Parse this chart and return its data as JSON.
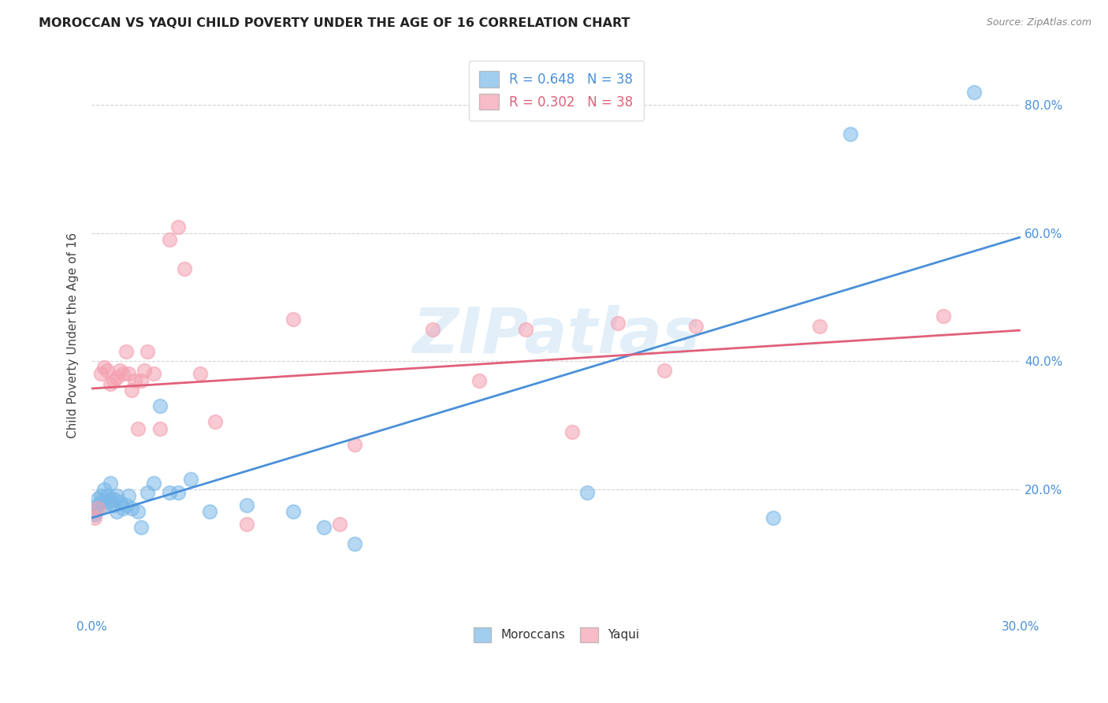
{
  "title": "MOROCCAN VS YAQUI CHILD POVERTY UNDER THE AGE OF 16 CORRELATION CHART",
  "source": "Source: ZipAtlas.com",
  "ylabel": "Child Poverty Under the Age of 16",
  "watermark": "ZIPatlas",
  "xlim": [
    0.0,
    0.3
  ],
  "ylim": [
    0.0,
    0.88
  ],
  "xticks": [
    0.0,
    0.05,
    0.1,
    0.15,
    0.2,
    0.25,
    0.3
  ],
  "yticks": [
    0.0,
    0.2,
    0.4,
    0.6,
    0.8
  ],
  "right_ytick_labels": [
    "",
    "20.0%",
    "40.0%",
    "60.0%",
    "80.0%"
  ],
  "xtick_labels": [
    "0.0%",
    "",
    "",
    "",
    "",
    "",
    "30.0%"
  ],
  "moroccan_R": 0.648,
  "moroccan_N": 38,
  "yaqui_R": 0.302,
  "yaqui_N": 38,
  "moroccan_color": "#7ab8e8",
  "yaqui_color": "#f4a0b0",
  "moroccan_line_color": "#4a90d9",
  "yaqui_line_color": "#e0607a",
  "background_color": "#ffffff",
  "moroccan_x": [
    0.001,
    0.001,
    0.002,
    0.002,
    0.003,
    0.003,
    0.004,
    0.004,
    0.005,
    0.005,
    0.006,
    0.006,
    0.007,
    0.007,
    0.008,
    0.008,
    0.009,
    0.01,
    0.011,
    0.012,
    0.013,
    0.015,
    0.016,
    0.018,
    0.02,
    0.022,
    0.025,
    0.028,
    0.032,
    0.038,
    0.05,
    0.065,
    0.075,
    0.085,
    0.16,
    0.22,
    0.245,
    0.285
  ],
  "moroccan_y": [
    0.165,
    0.16,
    0.185,
    0.175,
    0.19,
    0.18,
    0.2,
    0.175,
    0.19,
    0.18,
    0.21,
    0.185,
    0.185,
    0.175,
    0.19,
    0.165,
    0.18,
    0.17,
    0.175,
    0.19,
    0.17,
    0.165,
    0.14,
    0.195,
    0.21,
    0.33,
    0.195,
    0.195,
    0.215,
    0.165,
    0.175,
    0.165,
    0.14,
    0.115,
    0.195,
    0.155,
    0.755,
    0.82
  ],
  "yaqui_x": [
    0.001,
    0.002,
    0.003,
    0.004,
    0.005,
    0.006,
    0.007,
    0.008,
    0.009,
    0.01,
    0.011,
    0.012,
    0.013,
    0.014,
    0.015,
    0.016,
    0.017,
    0.018,
    0.02,
    0.022,
    0.025,
    0.028,
    0.03,
    0.035,
    0.04,
    0.05,
    0.065,
    0.08,
    0.085,
    0.11,
    0.125,
    0.14,
    0.155,
    0.17,
    0.185,
    0.195,
    0.235,
    0.275
  ],
  "yaqui_y": [
    0.155,
    0.17,
    0.38,
    0.39,
    0.385,
    0.365,
    0.37,
    0.375,
    0.385,
    0.38,
    0.415,
    0.38,
    0.355,
    0.37,
    0.295,
    0.37,
    0.385,
    0.415,
    0.38,
    0.295,
    0.59,
    0.61,
    0.545,
    0.38,
    0.305,
    0.145,
    0.465,
    0.145,
    0.27,
    0.45,
    0.37,
    0.45,
    0.29,
    0.46,
    0.385,
    0.455,
    0.455,
    0.47
  ]
}
